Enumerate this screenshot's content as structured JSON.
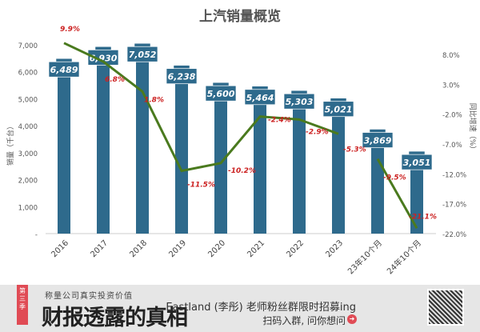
{
  "chart_data": {
    "type": "bar+line",
    "title": "上汽销量概览",
    "categories": [
      "2016",
      "2017",
      "2018",
      "2019",
      "2020",
      "2021",
      "2022",
      "2023",
      "23年10个月",
      "24年10个月"
    ],
    "series": [
      {
        "axis": "left",
        "type": "bar",
        "values": [
          6489,
          6930,
          7052,
          6238,
          5600,
          5464,
          5303,
          5021,
          3869,
          3051
        ],
        "labels": [
          "6,489",
          "6,930",
          "7,052",
          "6,238",
          "5,600",
          "5,464",
          "5,303",
          "5,021",
          "3,869",
          "3,051"
        ],
        "color": "#2e6a8c"
      },
      {
        "axis": "right",
        "type": "line",
        "values": [
          9.9,
          6.8,
          1.8,
          -11.5,
          -10.2,
          -2.4,
          -2.9,
          -5.3,
          -9.5,
          -21.1
        ],
        "labels": [
          "9.9%",
          "6.8%",
          "1.8%",
          "-11.5%",
          "-10.2%",
          "-2.4%",
          "-2.9%",
          "-5.3%",
          "-9.5%",
          "-21.1%"
        ],
        "segments": [
          [
            0,
            7
          ],
          [
            8,
            9
          ]
        ],
        "color": "#4a7a1e",
        "label_color": "#cc2222"
      }
    ],
    "ylabel": "销量（千台）",
    "ylabel_right": "同比增速（%）",
    "ylim": [
      0,
      7000
    ],
    "ylim_right": [
      -22,
      8
    ],
    "yticks": [
      "-",
      "1,000",
      "2,000",
      "3,000",
      "4,000",
      "5,000",
      "6,000",
      "7,000"
    ],
    "yticks_right": [
      "8.0%",
      "3.0%",
      "-2.0%",
      "-7.0%",
      "-12.0%",
      "-17.0%",
      "-22.0%"
    ],
    "grid": false
  },
  "banner": {
    "season": "第三季",
    "subtitle": "称量公司真实投资价值",
    "title": "财报透露的真相",
    "promo": "Eastland (李彤) 老师粉丝群限时招募ing",
    "cta": "扫码入群, 问你想问",
    "arrow_icon": "arrow-right-circle-icon"
  }
}
